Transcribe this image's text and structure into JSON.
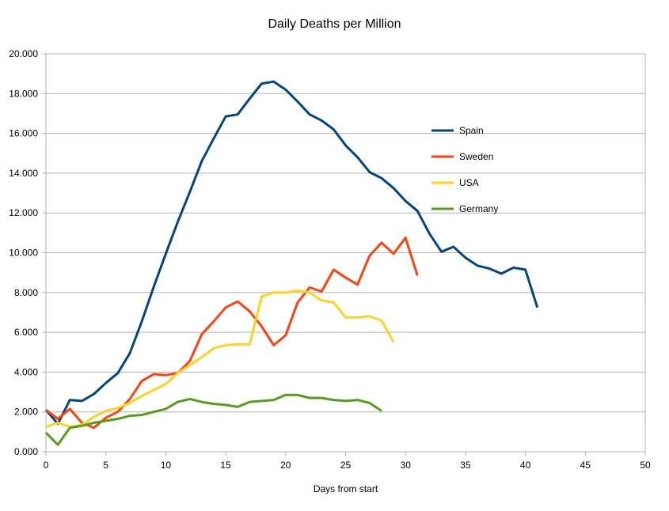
{
  "chart_data": {
    "type": "line",
    "title": "Daily Deaths per Million",
    "xlabel": "Days from start",
    "ylabel": "",
    "xlim": [
      0,
      50
    ],
    "ylim": [
      0,
      20
    ],
    "x_ticks": [
      0,
      5,
      10,
      15,
      20,
      25,
      30,
      35,
      40,
      45,
      50
    ],
    "x_tick_labels": [
      "0",
      "5",
      "10",
      "15",
      "20",
      "25",
      "30",
      "35",
      "40",
      "45",
      "50"
    ],
    "y_ticks": [
      0,
      2,
      4,
      6,
      8,
      10,
      12,
      14,
      16,
      18,
      20
    ],
    "y_tick_labels": [
      "0.000",
      "2.000",
      "4.000",
      "6.000",
      "8.000",
      "10.000",
      "12.000",
      "14.000",
      "16.000",
      "18.000",
      "20.000"
    ],
    "grid": "horizontal",
    "legend_position": "right",
    "series": [
      {
        "name": "Spain",
        "color": "#004586",
        "x": [
          0,
          1,
          2,
          3,
          4,
          5,
          6,
          7,
          8,
          9,
          10,
          11,
          12,
          13,
          14,
          15,
          16,
          17,
          18,
          19,
          20,
          21,
          22,
          23,
          24,
          25,
          26,
          27,
          28,
          29,
          30,
          31,
          32,
          33,
          34,
          35,
          36,
          37,
          38,
          39,
          40,
          41
        ],
        "values": [
          2.1,
          1.4,
          2.6,
          2.55,
          2.9,
          3.45,
          3.95,
          4.95,
          6.55,
          8.3,
          9.95,
          11.55,
          13.05,
          14.6,
          15.75,
          16.85,
          16.95,
          17.75,
          18.5,
          18.6,
          18.2,
          17.6,
          16.95,
          16.65,
          16.2,
          15.4,
          14.8,
          14.05,
          13.75,
          13.25,
          12.6,
          12.1,
          10.95,
          10.05,
          10.3,
          9.75,
          9.35,
          9.2,
          8.95,
          9.25,
          9.15,
          7.25
        ]
      },
      {
        "name": "Sweden",
        "color": "#ff420e",
        "x": [
          0,
          1,
          2,
          3,
          4,
          5,
          6,
          7,
          8,
          9,
          10,
          11,
          12,
          13,
          14,
          15,
          16,
          17,
          18,
          19,
          20,
          21,
          22,
          23,
          24,
          25,
          26,
          27,
          28,
          29,
          30,
          31
        ],
        "values": [
          2.1,
          1.65,
          2.15,
          1.45,
          1.2,
          1.7,
          2.0,
          2.65,
          3.55,
          3.9,
          3.85,
          3.95,
          4.55,
          5.9,
          6.55,
          7.25,
          7.55,
          7.05,
          6.3,
          5.35,
          5.85,
          7.5,
          8.25,
          8.05,
          9.15,
          8.75,
          8.4,
          9.85,
          10.5,
          9.95,
          10.75,
          8.85
        ]
      },
      {
        "name": "USA",
        "color": "#ffd320",
        "x": [
          0,
          1,
          2,
          3,
          4,
          5,
          6,
          7,
          8,
          9,
          10,
          11,
          12,
          13,
          14,
          15,
          16,
          17,
          18,
          19,
          20,
          21,
          22,
          23,
          24,
          25,
          26,
          27,
          28,
          29
        ],
        "values": [
          1.25,
          1.45,
          1.25,
          1.35,
          1.75,
          2.05,
          2.2,
          2.45,
          2.8,
          3.1,
          3.4,
          3.95,
          4.35,
          4.75,
          5.2,
          5.35,
          5.4,
          5.4,
          7.8,
          8.0,
          8.0,
          8.1,
          8.0,
          7.6,
          7.5,
          6.75,
          6.75,
          6.8,
          6.6,
          5.5
        ]
      },
      {
        "name": "Germany",
        "color": "#579d1c",
        "x": [
          0,
          1,
          2,
          3,
          4,
          5,
          6,
          7,
          8,
          9,
          10,
          11,
          12,
          13,
          14,
          15,
          16,
          17,
          18,
          19,
          20,
          21,
          22,
          23,
          24,
          25,
          26,
          27,
          28
        ],
        "values": [
          0.95,
          0.35,
          1.2,
          1.3,
          1.45,
          1.55,
          1.65,
          1.8,
          1.85,
          2.0,
          2.15,
          2.5,
          2.65,
          2.5,
          2.4,
          2.35,
          2.25,
          2.5,
          2.55,
          2.6,
          2.85,
          2.85,
          2.7,
          2.7,
          2.6,
          2.55,
          2.6,
          2.45,
          2.05
        ]
      }
    ]
  }
}
